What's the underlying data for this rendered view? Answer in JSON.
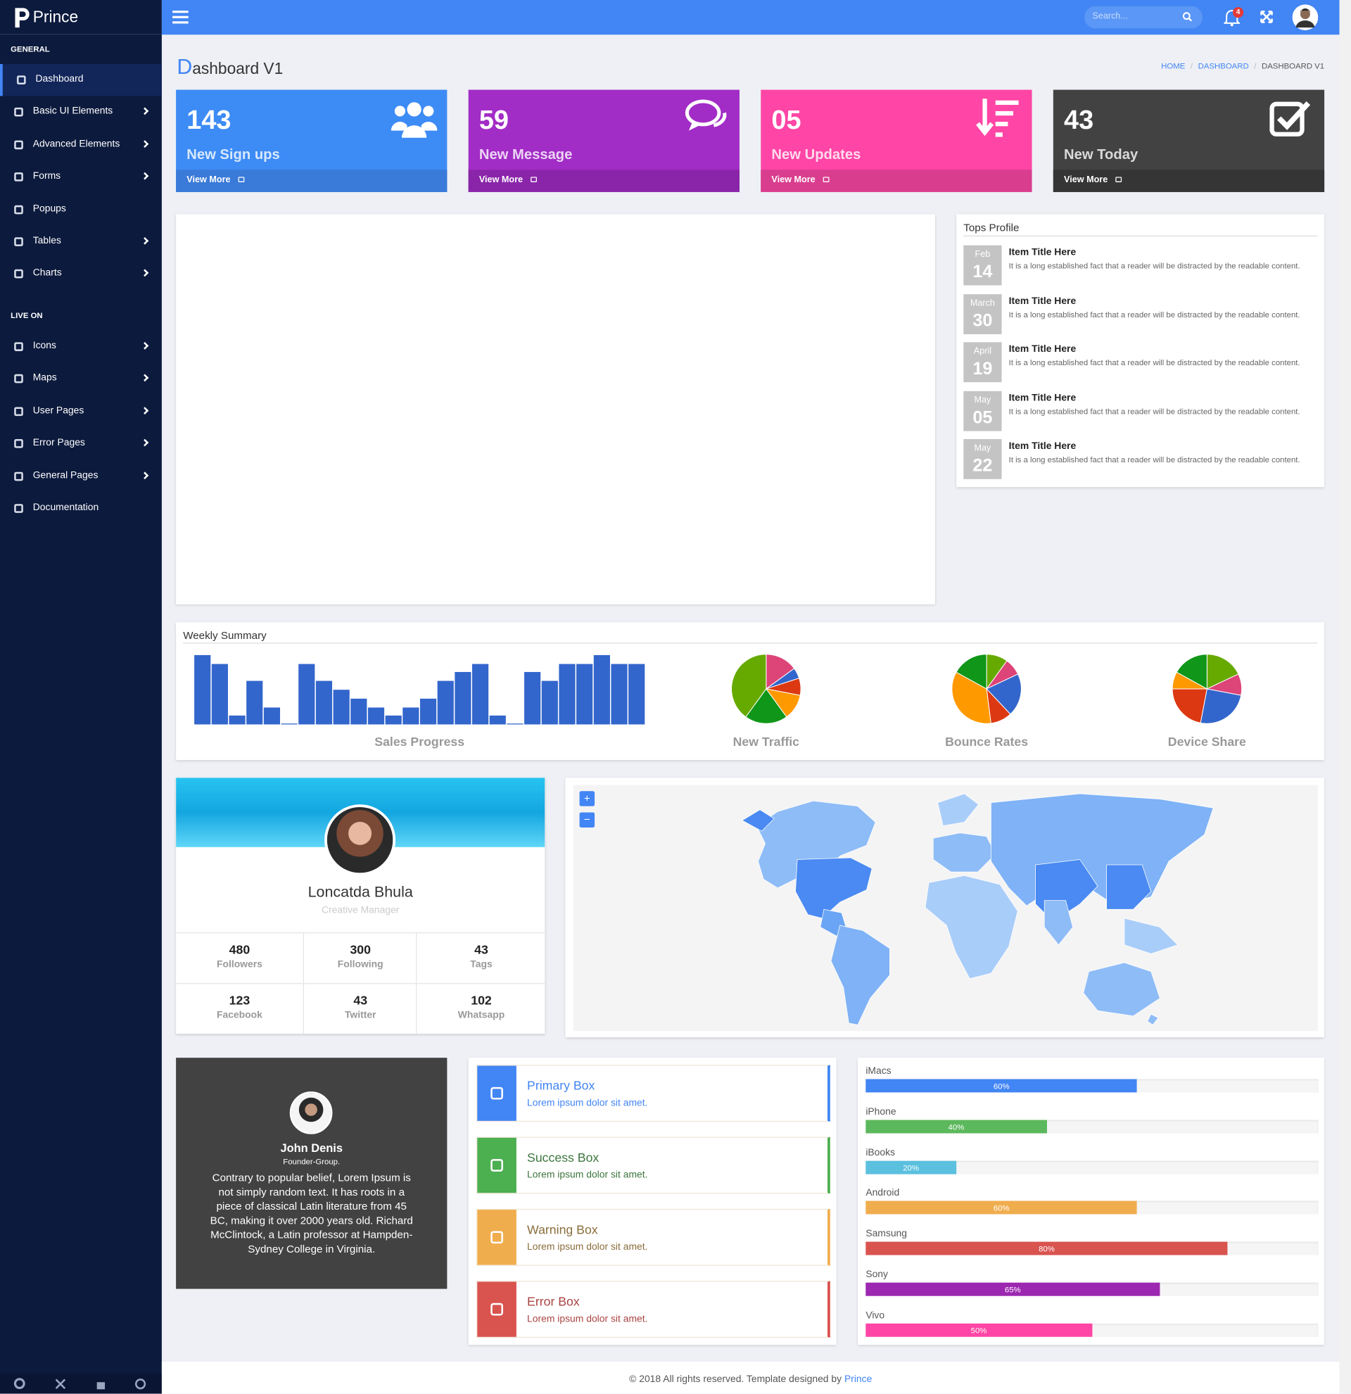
{
  "brand": "Prince",
  "sidebar": {
    "sections": [
      {
        "title": "GENERAL",
        "items": [
          "Dashboard",
          "Basic UI Elements",
          "Advanced Elements",
          "Forms",
          "Popups",
          "Tables",
          "Charts"
        ]
      },
      {
        "title": "LIVE ON",
        "items": [
          "Icons",
          "Maps",
          "User Pages",
          "Error Pages",
          "General Pages",
          "Documentation"
        ]
      }
    ]
  },
  "topbar": {
    "search_placeholder": "Search...",
    "notifications": "4"
  },
  "page_title": "Dashboard V1",
  "breadcrumb": [
    "HOME",
    "DASHBOARD",
    "DASHBOARD V1"
  ],
  "stat_cards": [
    {
      "value": "143",
      "label": "New Sign ups",
      "link": "View More",
      "color": "#3d8bf5",
      "footer_color": "#3a7ad8"
    },
    {
      "value": "59",
      "label": "New Message",
      "link": "View More",
      "color": "#a22cc6",
      "footer_color": "#8a25a9"
    },
    {
      "value": "05",
      "label": "New Updates",
      "link": "View More",
      "color": "#ff45a5",
      "footer_color": "#d93d8e"
    },
    {
      "value": "43",
      "label": "New Today",
      "link": "View More",
      "color": "#424242",
      "footer_color": "#353535"
    }
  ],
  "tops_profile": {
    "title": "Tops Profile",
    "items": [
      {
        "month": "Feb",
        "day": "14",
        "title": "Item Title Here",
        "text": "It is a long established fact that a reader will be distracted by the readable content."
      },
      {
        "month": "March",
        "day": "30",
        "title": "Item Title Here",
        "text": "It is a long established fact that a reader will be distracted by the readable content."
      },
      {
        "month": "April",
        "day": "19",
        "title": "Item Title Here",
        "text": "It is a long established fact that a reader will be distracted by the readable content."
      },
      {
        "month": "May",
        "day": "05",
        "title": "Item Title Here",
        "text": "It is a long established fact that a reader will be distracted by the readable content."
      },
      {
        "month": "May",
        "day": "22",
        "title": "Item Title Here",
        "text": "It is a long established fact that a reader will be distracted by the readable content."
      }
    ]
  },
  "weekly_summary": {
    "title": "Weekly Summary",
    "charts": [
      {
        "type": "bar",
        "label": "Sales Progress",
        "color": "#3366cc",
        "values": [
          78,
          68,
          10,
          49,
          19,
          1,
          68,
          49,
          39,
          29,
          19,
          10,
          19,
          29,
          49,
          59,
          68,
          10,
          1,
          59,
          49,
          68,
          68,
          78,
          68,
          68
        ]
      },
      {
        "type": "pie",
        "label": "New Traffic",
        "values": [
          15,
          5,
          8,
          12,
          20,
          40
        ],
        "colors": [
          "#dd4477",
          "#3366cc",
          "#dc3912",
          "#ff9900",
          "#109618",
          "#66aa00"
        ]
      },
      {
        "type": "pie",
        "label": "Bounce Rates",
        "values": [
          10,
          8,
          20,
          10,
          35,
          17
        ],
        "colors": [
          "#66aa00",
          "#dd4477",
          "#3366cc",
          "#dc3912",
          "#ff9900",
          "#109618"
        ]
      },
      {
        "type": "pie",
        "label": "Device Share",
        "values": [
          18,
          10,
          25,
          22,
          8,
          17
        ],
        "colors": [
          "#66aa00",
          "#dd4477",
          "#3366cc",
          "#dc3912",
          "#ff9900",
          "#109618"
        ]
      }
    ]
  },
  "profile": {
    "name": "Loncatda Bhula",
    "role": "Creative Manager",
    "stats": [
      {
        "value": "480",
        "label": "Followers"
      },
      {
        "value": "300",
        "label": "Following"
      },
      {
        "value": "43",
        "label": "Tags"
      },
      {
        "value": "123",
        "label": "Facebook"
      },
      {
        "value": "43",
        "label": "Twitter"
      },
      {
        "value": "102",
        "label": "Whatsapp"
      }
    ]
  },
  "map": {
    "zoom_in": "+",
    "zoom_out": "−"
  },
  "testimonial": {
    "name": "John Denis",
    "role": "Founder-Group.",
    "quote": "Contrary to popular belief, Lorem Ipsum is not simply random text. It has roots in a piece of classical Latin literature from 45 BC, making it over 2000 years old. Richard McClintock, a Latin professor at Hampden-Sydney College in Virginia."
  },
  "boxes": [
    {
      "title": "Primary Box",
      "text": "Lorem ipsum dolor sit amet.",
      "color": "#4285f4",
      "text_color": "#4285f4"
    },
    {
      "title": "Success Box",
      "text": "Lorem ipsum dolor sit amet.",
      "color": "#4caf50",
      "text_color": "#3c763d"
    },
    {
      "title": "Warning Box",
      "text": "Lorem ipsum dolor sit amet.",
      "color": "#f0ad4e",
      "text_color": "#8a6d3b"
    },
    {
      "title": "Error Box",
      "text": "Lorem ipsum dolor sit amet.",
      "color": "#d9534f",
      "text_color": "#a94442"
    }
  ],
  "progress": [
    {
      "name": "iMacs",
      "value": 60,
      "label": "60%",
      "color": "#4285f4"
    },
    {
      "name": "iPhone",
      "value": 40,
      "label": "40%",
      "color": "#5cb85c"
    },
    {
      "name": "iBooks",
      "value": 20,
      "label": "20%",
      "color": "#5bc0de"
    },
    {
      "name": "Android",
      "value": 60,
      "label": "60%",
      "color": "#f0ad4e"
    },
    {
      "name": "Samsung",
      "value": 80,
      "label": "80%",
      "color": "#d9534f"
    },
    {
      "name": "Sony",
      "value": 65,
      "label": "65%",
      "color": "#9c27b0"
    },
    {
      "name": "Vivo",
      "value": 50,
      "label": "50%",
      "color": "#ff45a5"
    }
  ],
  "footer": {
    "text": "© 2018 All rights reserved. Template designed by",
    "link": "Prince"
  }
}
